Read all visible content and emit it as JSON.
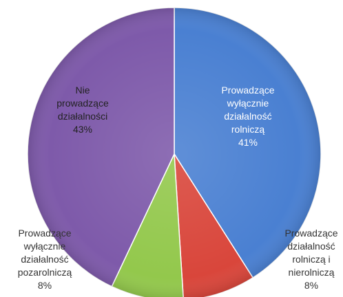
{
  "chart_data": {
    "type": "pie",
    "categories": [
      "Prowadzące\nwyłącznie\ndziałalność\nrolniczą",
      "Prowadzące\ndziałalność\nrolniczą i\nnierolniczą",
      "Prowadzące\nwyłącznie\ndziałalność\npozarolniczą",
      "Nie\nprowadzące\ndziałalności"
    ],
    "values": [
      41,
      8,
      8,
      43
    ],
    "value_labels": [
      "41%",
      "8%",
      "8%",
      "43%"
    ],
    "colors": [
      "#4a80d2",
      "#d9463b",
      "#93c84c",
      "#7e5aaa"
    ]
  }
}
